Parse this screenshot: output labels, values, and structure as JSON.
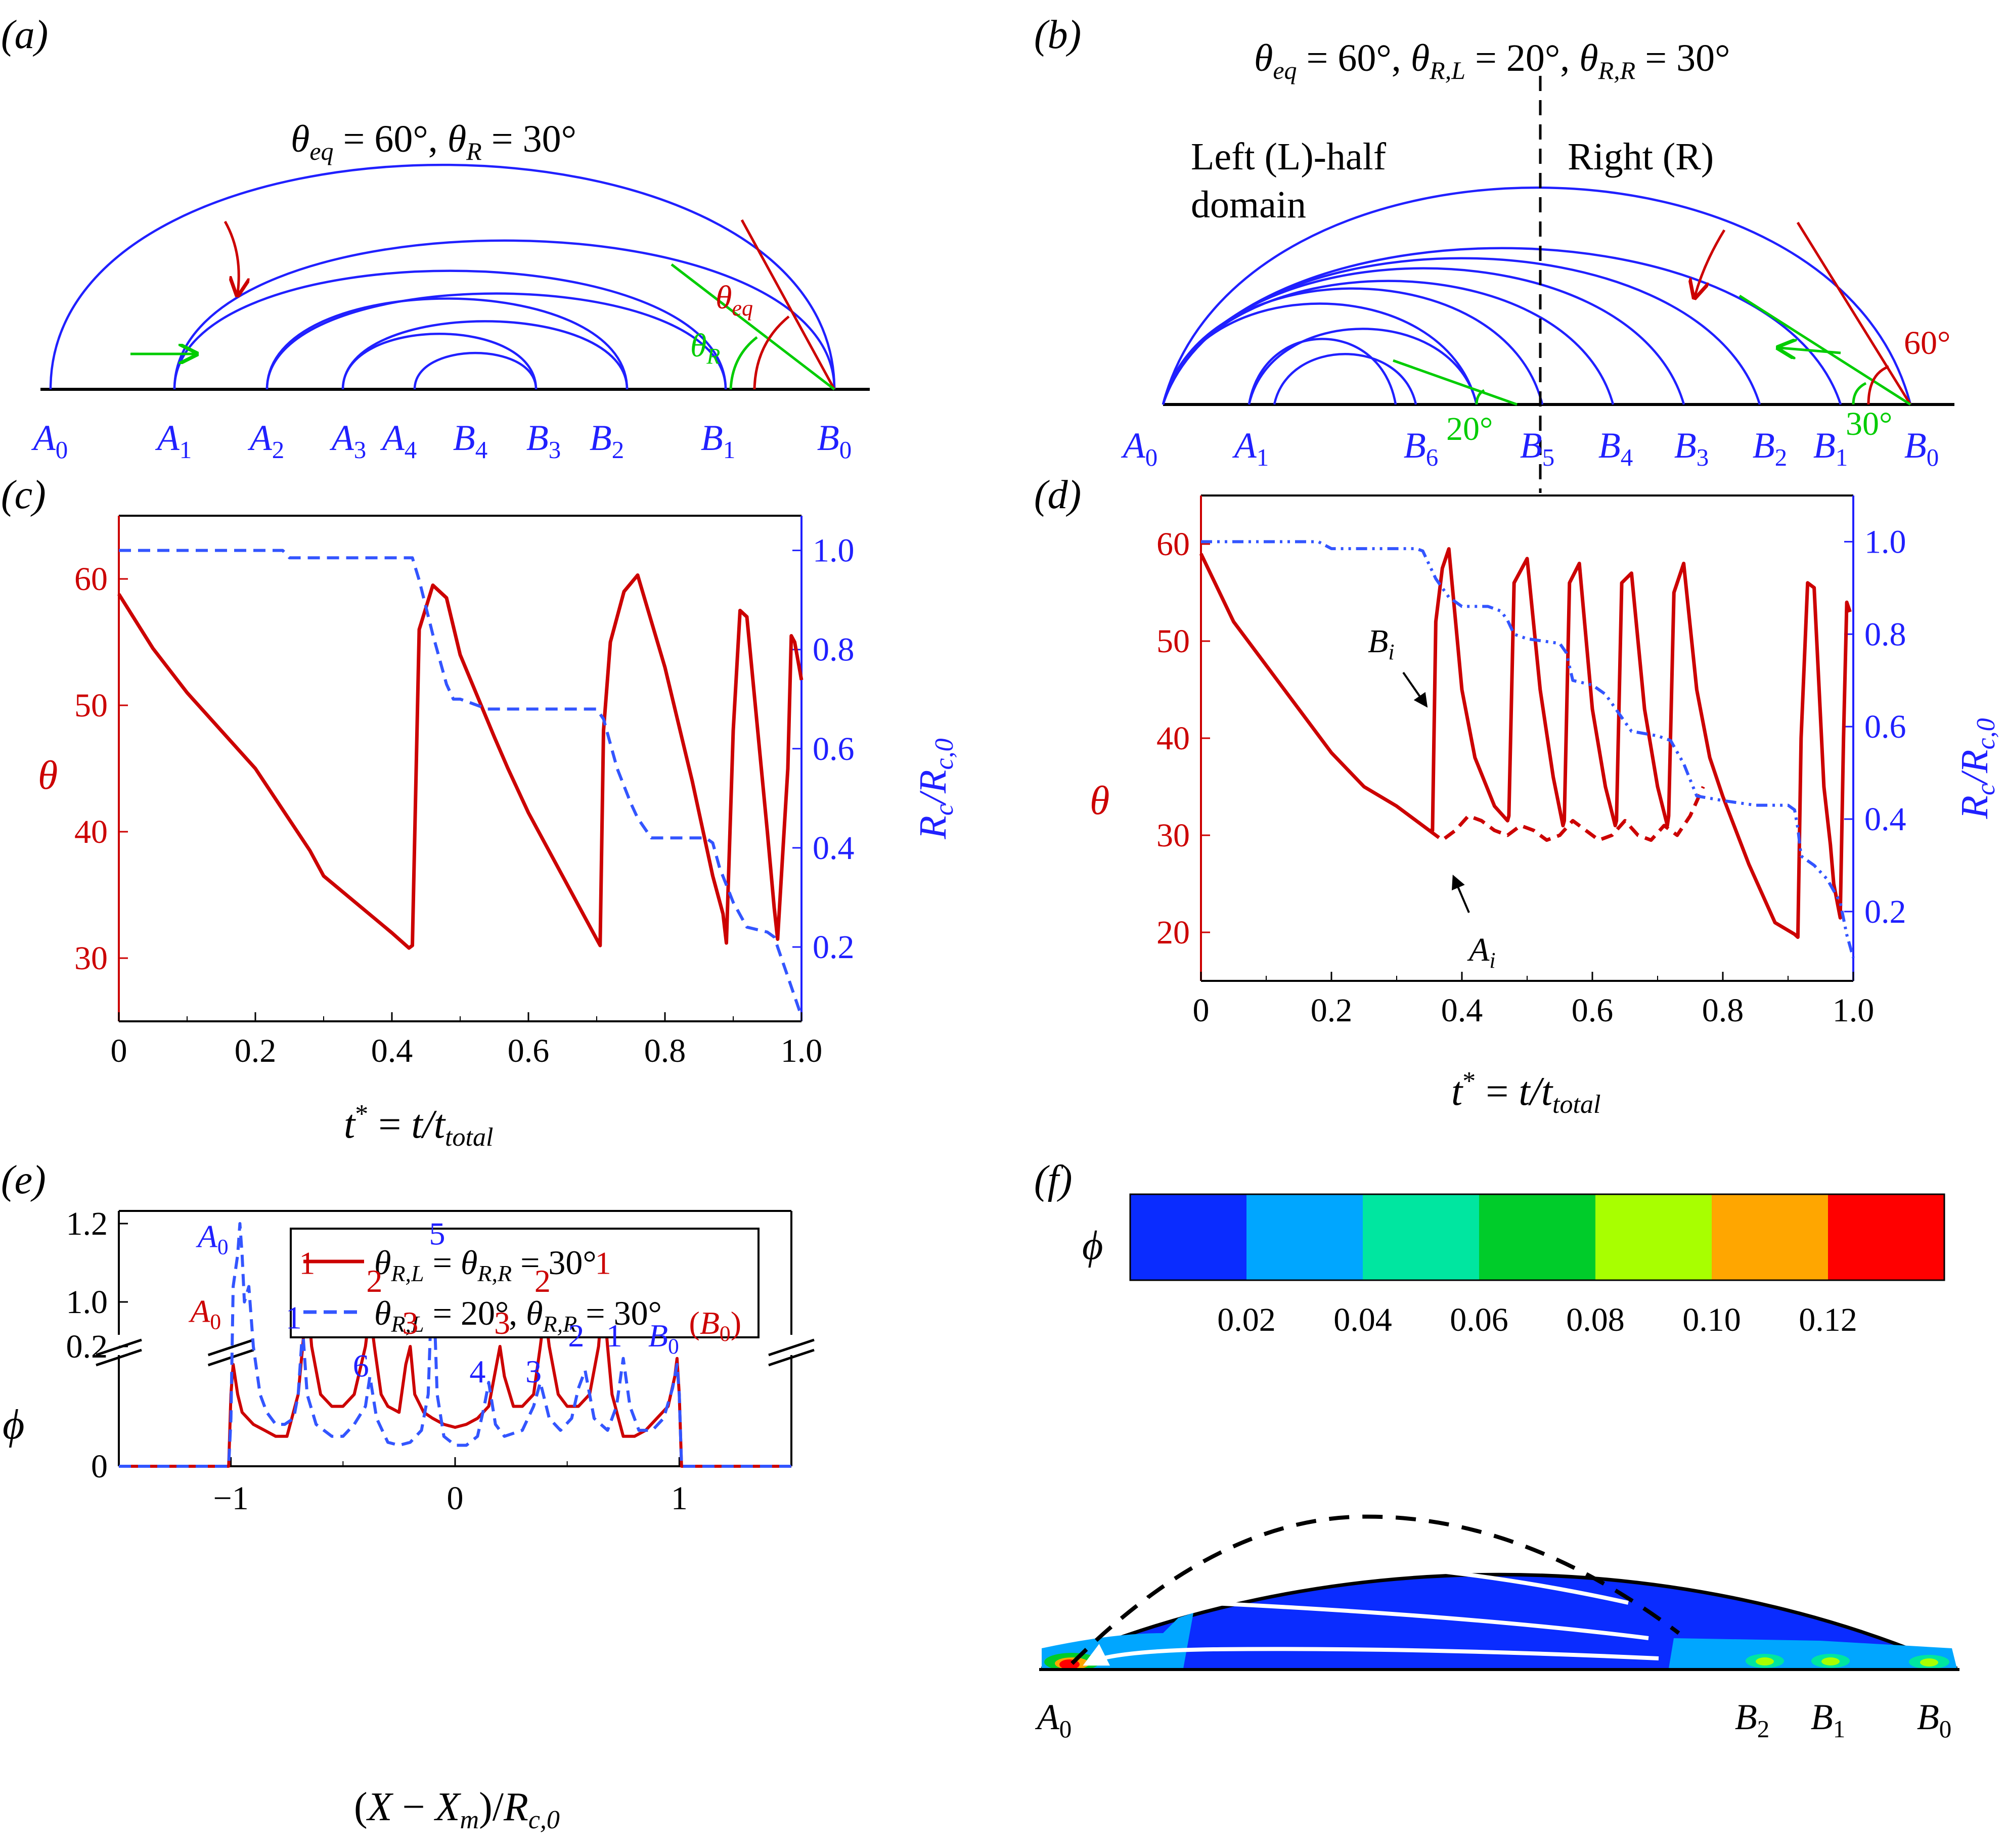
{
  "colors": {
    "red": "#cc0000",
    "blue": "#2020ff",
    "blue_dash": "#3355ff",
    "green": "#00cc00",
    "axis": "#000000",
    "contour_bg": "#0a2cff",
    "contour_light": "#00a6ff"
  },
  "panel_a": {
    "tag": "(a)",
    "title": "θeq = 60°, θR = 30°",
    "labels": [
      "A0",
      "A1",
      "A2",
      "A3",
      "A4",
      "B4",
      "B3",
      "B2",
      "B1",
      "B0"
    ],
    "angle_eq": "θeq",
    "angle_r": "θR"
  },
  "panel_b": {
    "tag": "(b)",
    "title": "θeq = 60°, θR,L = 20°, θR,R = 30°",
    "left_label_1": "Left (L)-half",
    "left_label_2": "domain",
    "right_label": "Right (R)",
    "labels": [
      "A0",
      "A1",
      "B6",
      "B5",
      "B4",
      "B3",
      "B2",
      "B1",
      "B0"
    ],
    "angle_60": "60°",
    "angle_20": "20°",
    "angle_30": "30°"
  },
  "chart_data": [
    {
      "id": "c",
      "tag": "(c)",
      "type": "line",
      "xlabel": "t* = t/ttotal",
      "ylabel_left": "θ",
      "ylabel_right": "Rc/Rc,0",
      "xlim": [
        0,
        1.0
      ],
      "ylim_left": [
        25,
        65
      ],
      "ylim_right": [
        0.05,
        1.07
      ],
      "xticks": [
        "0",
        "0.2",
        "0.4",
        "0.6",
        "0.8",
        "1.0"
      ],
      "yticks_left": [
        "30",
        "40",
        "50",
        "60"
      ],
      "yticks_right": [
        "0.2",
        "0.4",
        "0.6",
        "0.8",
        "1.0"
      ],
      "series": [
        {
          "axis": "left",
          "style": "solid",
          "x": [
            0,
            0.05,
            0.1,
            0.2,
            0.28,
            0.3,
            0.4,
            0.425,
            0.43,
            0.44,
            0.46,
            0.48,
            0.5,
            0.55,
            0.57,
            0.6,
            0.65,
            0.7,
            0.705,
            0.71,
            0.72,
            0.74,
            0.76,
            0.8,
            0.84,
            0.87,
            0.885,
            0.89,
            0.9,
            0.91,
            0.92,
            0.95,
            0.96,
            0.965,
            0.97,
            0.98,
            0.985,
            0.99,
            1.0
          ],
          "y": [
            58.8,
            54.5,
            51,
            45,
            38.5,
            36.5,
            32,
            30.8,
            31,
            56,
            59.5,
            58.5,
            54,
            47.5,
            45,
            41.5,
            36.5,
            31.5,
            31,
            48,
            55,
            59,
            60.3,
            53,
            44,
            36.5,
            33.5,
            31.2,
            48,
            57.5,
            57,
            40,
            34,
            31.5,
            36,
            45,
            55.5,
            55,
            52
          ]
        },
        {
          "axis": "right",
          "style": "dash",
          "x": [
            0,
            0.15,
            0.24,
            0.25,
            0.3,
            0.4,
            0.43,
            0.44,
            0.46,
            0.48,
            0.49,
            0.5,
            0.52,
            0.54,
            0.6,
            0.7,
            0.71,
            0.73,
            0.75,
            0.76,
            0.78,
            0.8,
            0.83,
            0.86,
            0.87,
            0.88,
            0.9,
            0.92,
            0.95,
            0.96,
            0.97,
            0.99,
            1.0
          ],
          "y": [
            1.0,
            1.0,
            1.0,
            0.985,
            0.985,
            0.985,
            0.985,
            0.94,
            0.83,
            0.73,
            0.7,
            0.7,
            0.69,
            0.68,
            0.68,
            0.68,
            0.66,
            0.56,
            0.49,
            0.46,
            0.42,
            0.42,
            0.42,
            0.42,
            0.41,
            0.36,
            0.29,
            0.24,
            0.23,
            0.22,
            0.18,
            0.1,
            0.06
          ]
        }
      ]
    },
    {
      "id": "d",
      "tag": "(d)",
      "type": "line",
      "xlabel": "t* = t/ttotal",
      "ylabel_left": "θ",
      "ylabel_right": "Rc/Rc,0",
      "xlim": [
        0,
        1.0
      ],
      "ylim_left": [
        15,
        65
      ],
      "ylim_right": [
        0.05,
        1.1
      ],
      "xticks": [
        "0",
        "0.2",
        "0.4",
        "0.6",
        "0.8",
        "1.0"
      ],
      "yticks_left": [
        "20",
        "30",
        "40",
        "50",
        "60"
      ],
      "yticks_right": [
        "0.2",
        "0.4",
        "0.6",
        "0.8",
        "1.0"
      ],
      "annotations": [
        "Bi",
        "Ai"
      ],
      "series": [
        {
          "axis": "left",
          "style": "solid",
          "x": [
            0,
            0.05,
            0.1,
            0.15,
            0.2,
            0.25,
            0.3,
            0.35,
            0.355,
            0.36,
            0.37,
            0.38,
            0.4,
            0.42,
            0.45,
            0.47,
            0.472,
            0.48,
            0.5,
            0.52,
            0.54,
            0.555,
            0.557,
            0.565,
            0.58,
            0.6,
            0.62,
            0.635,
            0.637,
            0.645,
            0.66,
            0.68,
            0.7,
            0.715,
            0.717,
            0.725,
            0.74,
            0.76,
            0.78,
            0.8,
            0.84,
            0.88,
            0.91,
            0.915,
            0.92,
            0.93,
            0.94,
            0.955,
            0.965,
            0.97,
            0.98,
            0.985,
            0.99,
            0.995
          ],
          "y": [
            59,
            52,
            47.5,
            43,
            38.5,
            35,
            33,
            30.5,
            30.5,
            52,
            57.5,
            59.5,
            45,
            38,
            33,
            31.5,
            32,
            56,
            58.5,
            45,
            36,
            31,
            31.5,
            56,
            58,
            43,
            35,
            31,
            31.5,
            56,
            57,
            43,
            35,
            31,
            32,
            55,
            58,
            45,
            38,
            34,
            27,
            21,
            19.8,
            19.5,
            40,
            56,
            55.5,
            35,
            29,
            25,
            21.5,
            40,
            54,
            53
          ]
        },
        {
          "axis": "left",
          "style": "dash",
          "x": [
            0.35,
            0.37,
            0.39,
            0.41,
            0.43,
            0.45,
            0.47,
            0.49,
            0.51,
            0.53,
            0.55,
            0.57,
            0.59,
            0.61,
            0.63,
            0.65,
            0.67,
            0.69,
            0.71,
            0.73,
            0.75,
            0.77
          ],
          "y": [
            30.5,
            29.5,
            30.5,
            32,
            31.5,
            30.5,
            30,
            31,
            30.5,
            29.5,
            30,
            31.5,
            30.5,
            29.5,
            30,
            31.5,
            30,
            29.5,
            31,
            30,
            32,
            35
          ]
        },
        {
          "axis": "right",
          "style": "dashdot",
          "x": [
            0,
            0.1,
            0.18,
            0.2,
            0.3,
            0.33,
            0.34,
            0.36,
            0.38,
            0.4,
            0.44,
            0.46,
            0.47,
            0.48,
            0.5,
            0.55,
            0.56,
            0.57,
            0.6,
            0.62,
            0.64,
            0.66,
            0.7,
            0.72,
            0.74,
            0.76,
            0.8,
            0.85,
            0.9,
            0.91,
            0.915,
            0.92,
            0.94,
            0.96,
            0.98,
            0.99,
            1.0
          ],
          "y": [
            1.0,
            1.0,
            1.0,
            0.985,
            0.985,
            0.985,
            0.98,
            0.92,
            0.88,
            0.86,
            0.86,
            0.85,
            0.83,
            0.8,
            0.79,
            0.78,
            0.76,
            0.7,
            0.69,
            0.67,
            0.63,
            0.59,
            0.58,
            0.57,
            0.52,
            0.45,
            0.44,
            0.43,
            0.43,
            0.42,
            0.38,
            0.32,
            0.3,
            0.27,
            0.22,
            0.15,
            0.1
          ]
        }
      ]
    },
    {
      "id": "e",
      "tag": "(e)",
      "type": "line",
      "xlabel": "(X − Xm)/Rc,0",
      "ylabel": "ϕ",
      "xlim": [
        -1.5,
        1.5
      ],
      "xticks": [
        "−1",
        "0",
        "1"
      ],
      "yticks": [
        "0",
        "0.2",
        "1.0",
        "1.2"
      ],
      "legend": [
        "θR,L = θR,R = 30°",
        "θR,L = 20°, θR,R = 30°"
      ],
      "peak_labels_red": [
        "A0",
        "1",
        "2",
        "3",
        "3",
        "2",
        "1",
        "(B0)"
      ],
      "peak_labels_blue": [
        "A0",
        "1",
        "6",
        "5",
        "4",
        "3",
        "2",
        "1",
        "B0"
      ],
      "series": [
        {
          "style": "solid",
          "x": [
            -1.5,
            -1.01,
            -1.0,
            -0.99,
            -0.97,
            -0.95,
            -0.9,
            -0.85,
            -0.8,
            -0.75,
            -0.7,
            -0.68,
            -0.66,
            -0.64,
            -0.6,
            -0.55,
            -0.5,
            -0.45,
            -0.4,
            -0.38,
            -0.36,
            -0.33,
            -0.3,
            -0.25,
            -0.22,
            -0.2,
            -0.18,
            -0.14,
            -0.1,
            -0.05,
            0,
            0.05,
            0.1,
            0.15,
            0.18,
            0.2,
            0.22,
            0.26,
            0.3,
            0.35,
            0.38,
            0.4,
            0.42,
            0.46,
            0.5,
            0.55,
            0.6,
            0.64,
            0.66,
            0.68,
            0.7,
            0.75,
            0.8,
            0.85,
            0.9,
            0.95,
            0.98,
            0.99,
            1.0,
            1.01,
            1.5
          ],
          "y": [
            0,
            0,
            0.12,
            0.17,
            0.12,
            0.09,
            0.07,
            0.06,
            0.05,
            0.05,
            0.12,
            0.2,
            0.29,
            0.2,
            0.12,
            0.1,
            0.1,
            0.12,
            0.2,
            0.26,
            0.2,
            0.12,
            0.1,
            0.09,
            0.17,
            0.2,
            0.12,
            0.09,
            0.08,
            0.07,
            0.065,
            0.07,
            0.08,
            0.1,
            0.16,
            0.2,
            0.15,
            0.1,
            0.1,
            0.12,
            0.2,
            0.26,
            0.2,
            0.12,
            0.1,
            0.1,
            0.12,
            0.2,
            0.29,
            0.2,
            0.12,
            0.05,
            0.05,
            0.06,
            0.08,
            0.1,
            0.15,
            0.18,
            0.12,
            0,
            0
          ]
        },
        {
          "style": "dash",
          "x": [
            -1.5,
            -1.01,
            -1.0,
            -0.99,
            -0.97,
            -0.96,
            -0.95,
            -0.94,
            -0.92,
            -0.9,
            -0.87,
            -0.84,
            -0.8,
            -0.76,
            -0.72,
            -0.7,
            -0.68,
            -0.66,
            -0.62,
            -0.55,
            -0.5,
            -0.45,
            -0.4,
            -0.38,
            -0.35,
            -0.3,
            -0.25,
            -0.2,
            -0.15,
            -0.12,
            -0.1,
            -0.08,
            -0.05,
            0,
            0.05,
            0.1,
            0.13,
            0.15,
            0.18,
            0.22,
            0.3,
            0.35,
            0.38,
            0.42,
            0.47,
            0.52,
            0.55,
            0.58,
            0.62,
            0.68,
            0.72,
            0.75,
            0.78,
            0.82,
            0.88,
            0.93,
            0.97,
            0.99,
            1.0,
            1.01,
            1.5
          ],
          "y": [
            0,
            0,
            0.08,
            0.3,
            0.52,
            0.6,
            0.52,
            0.4,
            0.3,
            0.2,
            0.12,
            0.09,
            0.07,
            0.07,
            0.08,
            0.12,
            0.23,
            0.12,
            0.07,
            0.05,
            0.05,
            0.07,
            0.1,
            0.15,
            0.08,
            0.04,
            0.035,
            0.04,
            0.06,
            0.12,
            0.34,
            0.12,
            0.05,
            0.035,
            0.035,
            0.05,
            0.1,
            0.14,
            0.07,
            0.05,
            0.06,
            0.1,
            0.14,
            0.08,
            0.06,
            0.08,
            0.13,
            0.16,
            0.08,
            0.06,
            0.1,
            0.18,
            0.1,
            0.06,
            0.06,
            0.08,
            0.13,
            0.17,
            0.12,
            0,
            0
          ]
        }
      ]
    }
  ],
  "panel_f": {
    "tag": "(f)",
    "colorbar_label": "ϕ",
    "colorbar_ticks": [
      "0.02",
      "0.04",
      "0.06",
      "0.08",
      "0.10",
      "0.12"
    ],
    "colorbar_colors": [
      "#0a2cff",
      "#00a6ff",
      "#00e6a0",
      "#00cc2a",
      "#a8ff00",
      "#ffa600",
      "#ff0000"
    ],
    "labels": [
      "A0",
      "B2",
      "B1",
      "B0"
    ]
  }
}
